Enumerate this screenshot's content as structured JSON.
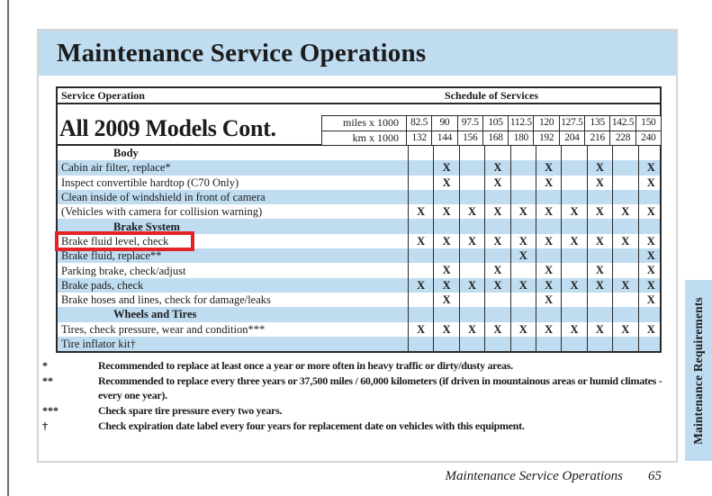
{
  "page": {
    "header_title": "Maintenance Service Operations",
    "side_tab": "Maintenance Requirements",
    "footer": {
      "text": "Maintenance Service Operations",
      "page_number": "65"
    }
  },
  "table": {
    "col_header_left": "Service Operation",
    "col_header_right": "Schedule of Services",
    "group_title": "All 2009 Models Cont.",
    "miles_label": "miles x 1000",
    "km_label": "km x 1000",
    "miles": [
      "82.5",
      "90",
      "97.5",
      "105",
      "112.5",
      "120",
      "127.5",
      "135",
      "142.5",
      "150"
    ],
    "km": [
      "132",
      "144",
      "156",
      "168",
      "180",
      "192",
      "204",
      "216",
      "228",
      "240"
    ],
    "mark_glyph": "X",
    "rows": [
      {
        "type": "section",
        "label": "Body"
      },
      {
        "type": "item",
        "label": "Cabin air filter, replace*",
        "marks": [
          0,
          1,
          0,
          1,
          0,
          1,
          0,
          1,
          0,
          1
        ]
      },
      {
        "type": "item",
        "label": "Inspect convertible hardtop (C70 Only)",
        "marks": [
          0,
          1,
          0,
          1,
          0,
          1,
          0,
          1,
          0,
          1
        ]
      },
      {
        "type": "item",
        "label": "Clean inside of windshield in front of camera",
        "marks": [
          0,
          0,
          0,
          0,
          0,
          0,
          0,
          0,
          0,
          0
        ]
      },
      {
        "type": "item",
        "label": "(Vehicles with camera for collision warning)",
        "marks": [
          1,
          1,
          1,
          1,
          1,
          1,
          1,
          1,
          1,
          1
        ]
      },
      {
        "type": "section",
        "label": "Brake System"
      },
      {
        "type": "item",
        "label": "Brake fluid level, check",
        "marks": [
          1,
          1,
          1,
          1,
          1,
          1,
          1,
          1,
          1,
          1
        ],
        "highlighted": true
      },
      {
        "type": "item",
        "label": "Brake fluid, replace**",
        "marks": [
          0,
          0,
          0,
          0,
          1,
          0,
          0,
          0,
          0,
          1
        ]
      },
      {
        "type": "item",
        "label": "Parking brake, check/adjust",
        "marks": [
          0,
          1,
          0,
          1,
          0,
          1,
          0,
          1,
          0,
          1
        ]
      },
      {
        "type": "item",
        "label": "Brake pads, check",
        "marks": [
          1,
          1,
          1,
          1,
          1,
          1,
          1,
          1,
          1,
          1
        ]
      },
      {
        "type": "item",
        "label": "Brake hoses and lines, check for damage/leaks",
        "marks": [
          0,
          1,
          0,
          0,
          0,
          1,
          0,
          0,
          0,
          1
        ]
      },
      {
        "type": "section",
        "label": "Wheels and Tires"
      },
      {
        "type": "item",
        "label": "Tires, check pressure, wear and condition***",
        "marks": [
          1,
          1,
          1,
          1,
          1,
          1,
          1,
          1,
          1,
          1
        ]
      },
      {
        "type": "item",
        "label": "Tire inflator kit†",
        "marks": [
          0,
          0,
          0,
          0,
          0,
          0,
          0,
          0,
          0,
          0
        ]
      }
    ]
  },
  "footnotes": [
    {
      "symbol": "*",
      "text": "Recommended to replace at least once a year or more often in heavy traffic or dirty/dusty areas."
    },
    {
      "symbol": "**",
      "text": "Recommended to replace every three years or 37,500 miles / 60,000 kilometers (if driven in mountainous areas or humid climates - every one year)."
    },
    {
      "symbol": "***",
      "text": "Check spare tire pressure every two years."
    },
    {
      "symbol": "†",
      "text": "Check expiration date label every four years for replacement date on vehicles with this equipment."
    }
  ],
  "colors": {
    "band_blue": "#bfdcf1",
    "highlight_red": "#e42329"
  }
}
